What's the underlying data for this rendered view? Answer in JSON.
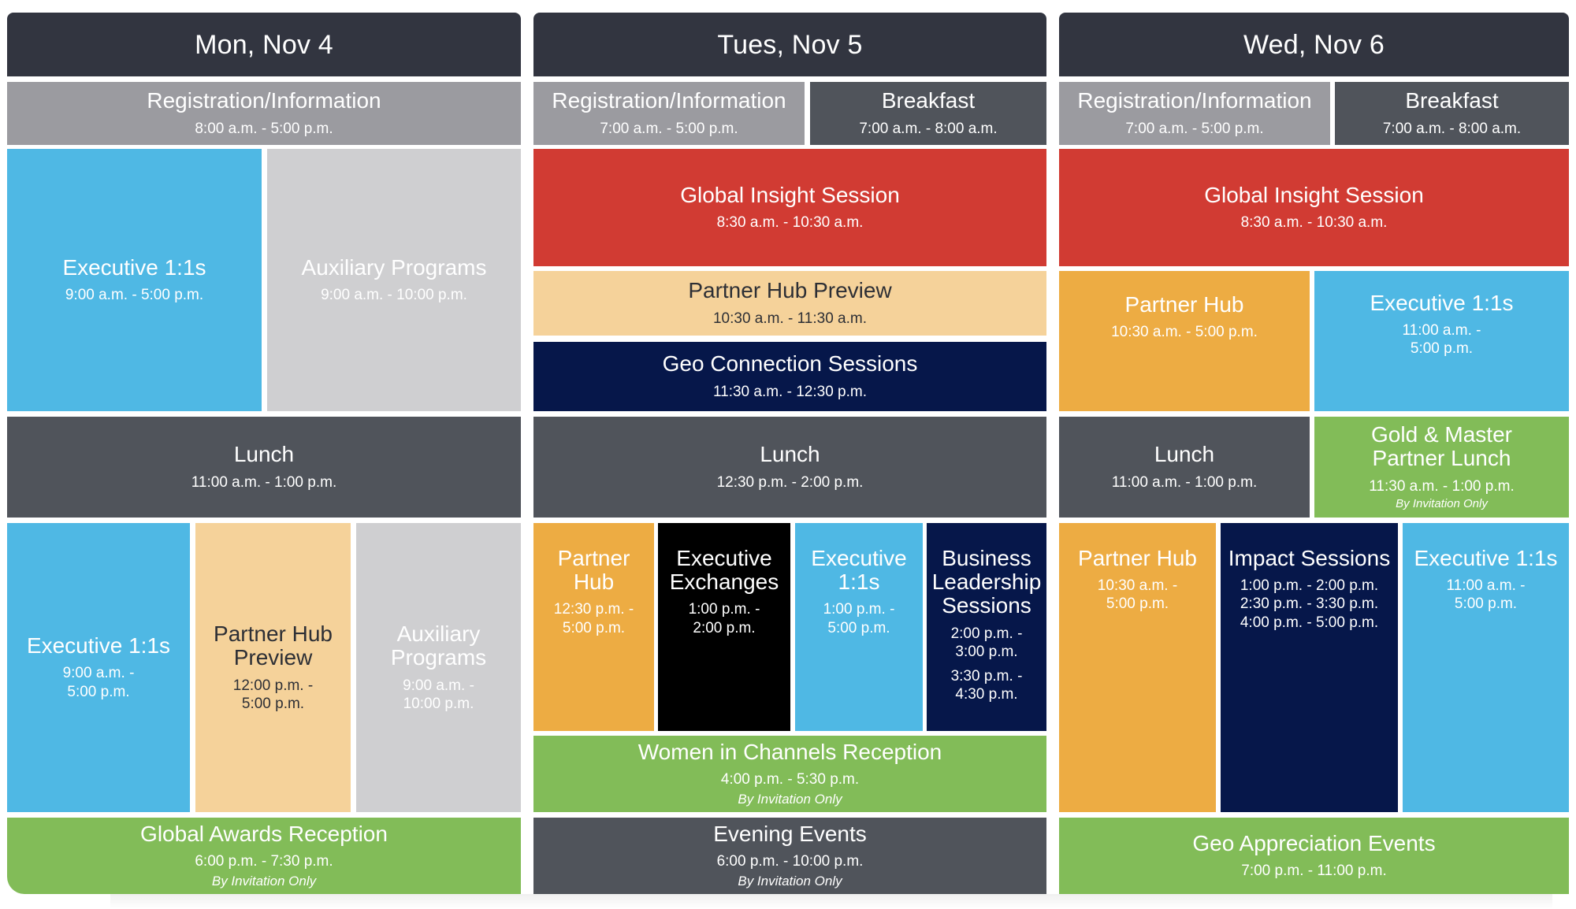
{
  "days": {
    "mon": {
      "header": "Mon, Nov 4",
      "events": {
        "registration": {
          "title": "Registration/Information",
          "time": "8:00 a.m. - 5:00 p.m."
        },
        "executive_morning": {
          "title": "Executive 1:1s",
          "time": "9:00 a.m. - 5:00 p.m."
        },
        "auxiliary_top": {
          "title": "Auxiliary Programs",
          "time": "9:00 a.m. - 10:00 p.m."
        },
        "lunch": {
          "title": "Lunch",
          "time": "11:00 a.m. - 1:00 p.m."
        },
        "executive_afternoon": {
          "title": "Executive 1:1s",
          "time": "9:00 a.m. -\n5:00 p.m."
        },
        "partner_hub_preview": {
          "title": "Partner Hub\nPreview",
          "time": "12:00 p.m. -\n5:00 p.m."
        },
        "auxiliary_bottom": {
          "title": "Auxiliary\nPrograms",
          "time": "9:00 a.m. -\n10:00 p.m."
        },
        "global_awards": {
          "title": "Global Awards Reception",
          "time": "6:00 p.m. - 7:30 p.m.",
          "note": "By Invitation Only"
        }
      }
    },
    "tue": {
      "header": "Tues, Nov 5",
      "events": {
        "registration": {
          "title": "Registration/Information",
          "time": "7:00 a.m. - 5:00 p.m."
        },
        "breakfast": {
          "title": "Breakfast",
          "time": "7:00 a.m. - 8:00 a.m."
        },
        "global_insight": {
          "title": "Global Insight Session",
          "time": "8:30 a.m. - 10:30 a.m."
        },
        "partner_hub_preview": {
          "title": "Partner Hub Preview",
          "time": "10:30 a.m. - 11:30 a.m."
        },
        "geo_connection": {
          "title": "Geo Connection Sessions",
          "time": "11:30 a.m. - 12:30 p.m."
        },
        "lunch": {
          "title": "Lunch",
          "time": "12:30 p.m. - 2:00 p.m."
        },
        "partner_hub": {
          "title": "Partner Hub",
          "time": "12:30 p.m. -\n5:00 p.m."
        },
        "executive_exchanges": {
          "title": "Executive\nExchanges",
          "time": "1:00 p.m. -\n2:00 p.m."
        },
        "executive_1on1": {
          "title": "Executive\n1:1s",
          "time": "1:00 p.m. -\n5:00 p.m."
        },
        "business_leadership": {
          "title": "Business\nLeadership\nSessions",
          "time_1": "2:00 p.m. -\n3:00 p.m.",
          "time_2": "3:30 p.m. -\n4:30 p.m."
        },
        "women_in_channels": {
          "title": "Women in Channels Reception",
          "time": "4:00 p.m. - 5:30 p.m.",
          "note": "By Invitation Only"
        },
        "evening_events": {
          "title": "Evening Events",
          "time": "6:00 p.m. - 10:00 p.m.",
          "note": "By Invitation Only"
        }
      }
    },
    "wed": {
      "header": "Wed, Nov 6",
      "events": {
        "registration": {
          "title": "Registration/Information",
          "time": "7:00 a.m. - 5:00 p.m."
        },
        "breakfast": {
          "title": "Breakfast",
          "time": "7:00 a.m. - 8:00 a.m."
        },
        "global_insight": {
          "title": "Global Insight Session",
          "time": "8:30 a.m. - 10:30 a.m."
        },
        "partner_hub_top": {
          "title": "Partner Hub",
          "time": "10:30 a.m. - 5:00 p.m."
        },
        "executive_top": {
          "title": "Executive 1:1s",
          "time": "11:00 a.m. -\n5:00 p.m."
        },
        "lunch": {
          "title": "Lunch",
          "time": "11:00 a.m. - 1:00 p.m."
        },
        "gold_master_lunch": {
          "title": "Gold & Master\nPartner Lunch",
          "time": "11:30 a.m. - 1:00 p.m.",
          "note": "By Invitation Only"
        },
        "partner_hub_bottom": {
          "title": "Partner Hub",
          "time": "10:30 a.m. -\n5:00 p.m."
        },
        "impact_sessions": {
          "title": "Impact Sessions",
          "time": "1:00 p.m. - 2:00 p.m.\n2:30 p.m. - 3:30 p.m.\n4:00 p.m. - 5:00 p.m."
        },
        "executive_bottom": {
          "title": "Executive 1:1s",
          "time": "11:00 a.m. -\n5:00 p.m."
        },
        "geo_appreciation": {
          "title": "Geo Appreciation Events",
          "time": "7:00 p.m. - 11:00 p.m."
        }
      }
    }
  },
  "colors": {
    "header": "#323540",
    "registration": "#9b9ba0",
    "lunch": "#50545b",
    "executive": "#4fb8e4",
    "auxiliary": "#cfcfd1",
    "global_insight": "#d13b33",
    "partner_hub_preview": "#f5d29a",
    "navy_sessions": "#06174a",
    "partner_hub": "#edac43",
    "executive_exchanges": "#000000",
    "reception": "#82bc58"
  }
}
